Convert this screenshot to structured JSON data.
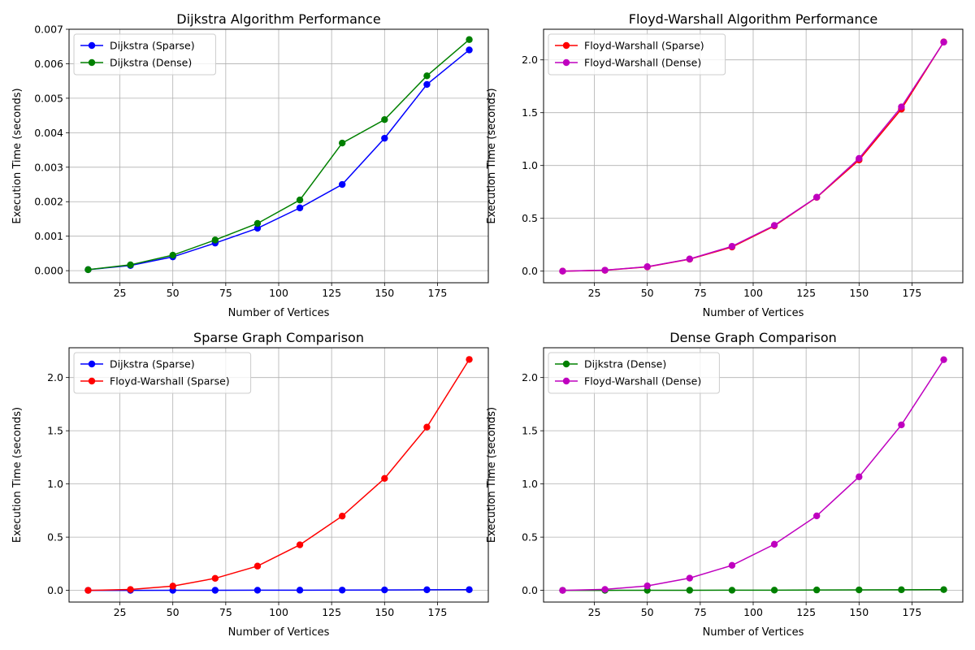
{
  "figure": {
    "background": "#ffffff",
    "grid_color": "#b0b0b0"
  },
  "chart_data": [
    {
      "type": "line",
      "title": "Dijkstra Algorithm Performance",
      "xlabel": "Number of Vertices",
      "ylabel": "Execution Time (seconds)",
      "x": [
        10,
        30,
        50,
        70,
        90,
        110,
        130,
        150,
        170,
        190
      ],
      "xlim": [
        1,
        199
      ],
      "ylim": [
        -0.00035,
        0.007
      ],
      "xticks": [
        25,
        50,
        75,
        100,
        125,
        150,
        175
      ],
      "xtick_labels": [
        "25",
        "50",
        "75",
        "100",
        "125",
        "150",
        "175"
      ],
      "yticks": [
        0,
        0.001,
        0.002,
        0.003,
        0.004,
        0.005,
        0.006,
        0.007
      ],
      "ytick_labels": [
        "0.000",
        "0.001",
        "0.002",
        "0.003",
        "0.004",
        "0.005",
        "0.006",
        "0.007"
      ],
      "grid": true,
      "legend_position": "top-left",
      "series": [
        {
          "name": "Dijkstra (Sparse)",
          "color": "#0000ff",
          "marker": "circle",
          "values": [
            3e-05,
            0.00015,
            0.0004,
            0.0008,
            0.00123,
            0.00182,
            0.0025,
            0.00384,
            0.0054,
            0.0064
          ]
        },
        {
          "name": "Dijkstra (Dense)",
          "color": "#008000",
          "marker": "circle",
          "values": [
            3e-05,
            0.00017,
            0.00045,
            0.00089,
            0.00137,
            0.00205,
            0.0037,
            0.00438,
            0.00565,
            0.0067
          ]
        }
      ]
    },
    {
      "type": "line",
      "title": "Floyd-Warshall Algorithm Performance",
      "xlabel": "Number of Vertices",
      "ylabel": "Execution Time (seconds)",
      "x": [
        10,
        30,
        50,
        70,
        90,
        110,
        130,
        150,
        170,
        190
      ],
      "xlim": [
        1,
        199
      ],
      "ylim": [
        -0.11,
        2.29
      ],
      "xticks": [
        25,
        50,
        75,
        100,
        125,
        150,
        175
      ],
      "xtick_labels": [
        "25",
        "50",
        "75",
        "100",
        "125",
        "150",
        "175"
      ],
      "yticks": [
        0,
        0.5,
        1,
        1.5,
        2
      ],
      "ytick_labels": [
        "0.0",
        "0.5",
        "1.0",
        "1.5",
        "2.0"
      ],
      "grid": true,
      "legend_position": "top-left",
      "series": [
        {
          "name": "Floyd-Warshall (Sparse)",
          "color": "#ff0000",
          "marker": "circle",
          "values": [
            0.0,
            0.008,
            0.04,
            0.113,
            0.228,
            0.428,
            0.698,
            1.052,
            1.534,
            2.17
          ]
        },
        {
          "name": "Floyd-Warshall (Dense)",
          "color": "#bf00bf",
          "marker": "circle",
          "values": [
            0.0,
            0.009,
            0.042,
            0.115,
            0.235,
            0.433,
            0.7,
            1.067,
            1.555,
            2.168
          ]
        }
      ]
    },
    {
      "type": "line",
      "title": "Sparse Graph Comparison",
      "xlabel": "Number of Vertices",
      "ylabel": "Execution Time (seconds)",
      "x": [
        10,
        30,
        50,
        70,
        90,
        110,
        130,
        150,
        170,
        190
      ],
      "xlim": [
        1,
        199
      ],
      "ylim": [
        -0.11,
        2.28
      ],
      "xticks": [
        25,
        50,
        75,
        100,
        125,
        150,
        175
      ],
      "xtick_labels": [
        "25",
        "50",
        "75",
        "100",
        "125",
        "150",
        "175"
      ],
      "yticks": [
        0,
        0.5,
        1,
        1.5,
        2
      ],
      "ytick_labels": [
        "0.0",
        "0.5",
        "1.0",
        "1.5",
        "2.0"
      ],
      "grid": true,
      "legend_position": "top-left",
      "series": [
        {
          "name": "Dijkstra (Sparse)",
          "color": "#0000ff",
          "marker": "circle",
          "values": [
            3e-05,
            0.00015,
            0.0004,
            0.0008,
            0.00123,
            0.00182,
            0.0025,
            0.00384,
            0.0054,
            0.0064
          ]
        },
        {
          "name": "Floyd-Warshall (Sparse)",
          "color": "#ff0000",
          "marker": "circle",
          "values": [
            0.0,
            0.008,
            0.04,
            0.113,
            0.228,
            0.428,
            0.698,
            1.052,
            1.534,
            2.17
          ]
        }
      ]
    },
    {
      "type": "line",
      "title": "Dense Graph Comparison",
      "xlabel": "Number of Vertices",
      "ylabel": "Execution Time (seconds)",
      "x": [
        10,
        30,
        50,
        70,
        90,
        110,
        130,
        150,
        170,
        190
      ],
      "xlim": [
        1,
        199
      ],
      "ylim": [
        -0.11,
        2.28
      ],
      "xticks": [
        25,
        50,
        75,
        100,
        125,
        150,
        175
      ],
      "xtick_labels": [
        "25",
        "50",
        "75",
        "100",
        "125",
        "150",
        "175"
      ],
      "yticks": [
        0,
        0.5,
        1,
        1.5,
        2
      ],
      "ytick_labels": [
        "0.0",
        "0.5",
        "1.0",
        "1.5",
        "2.0"
      ],
      "grid": true,
      "legend_position": "top-left",
      "series": [
        {
          "name": "Dijkstra (Dense)",
          "color": "#008000",
          "marker": "circle",
          "values": [
            3e-05,
            0.00017,
            0.00045,
            0.00089,
            0.00137,
            0.00205,
            0.0037,
            0.00438,
            0.00565,
            0.0067
          ]
        },
        {
          "name": "Floyd-Warshall (Dense)",
          "color": "#bf00bf",
          "marker": "circle",
          "values": [
            0.0,
            0.009,
            0.042,
            0.115,
            0.235,
            0.433,
            0.7,
            1.067,
            1.555,
            2.168
          ]
        }
      ]
    }
  ]
}
